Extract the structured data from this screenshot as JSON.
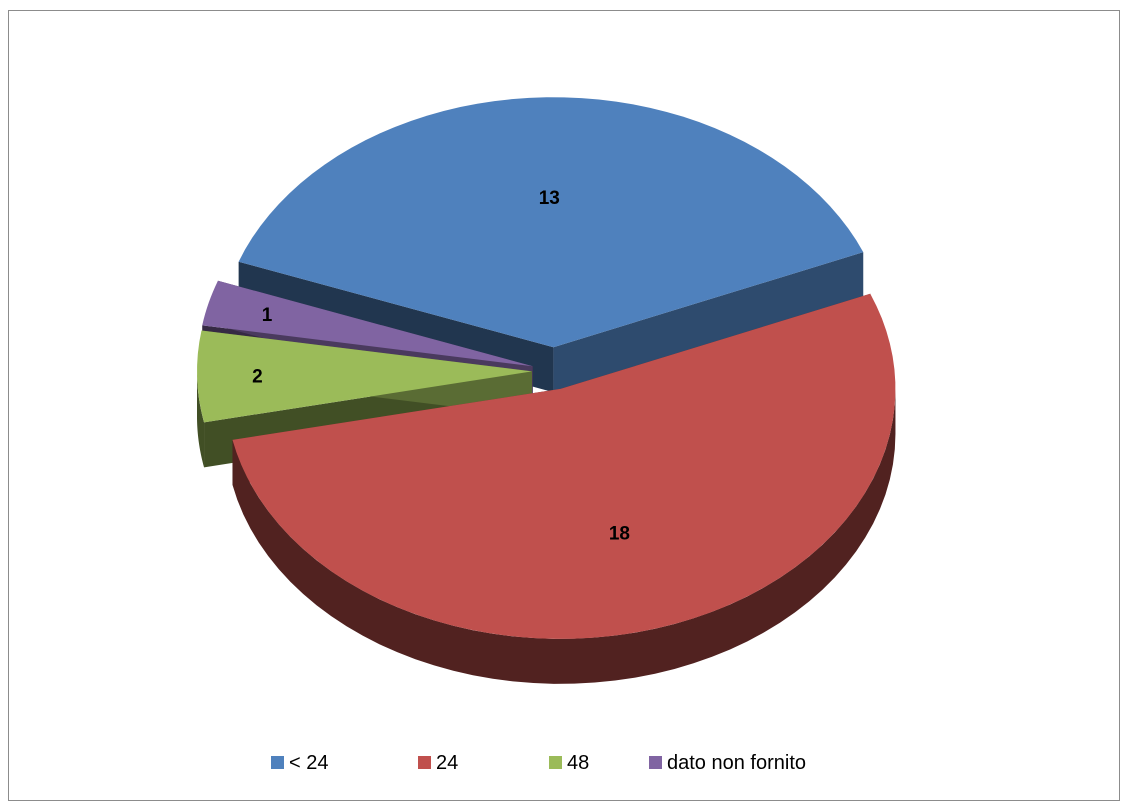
{
  "chart_data": {
    "type": "pie",
    "style": "3d-exploded",
    "title": "",
    "slices": [
      {
        "label": "< 24",
        "value": 13,
        "color": "#4F81BD"
      },
      {
        "label": "24",
        "value": 18,
        "color": "#C0504D"
      },
      {
        "label": "48",
        "value": 2,
        "color": "#9BBB59"
      },
      {
        "label": "dato non fornito",
        "value": 1,
        "color": "#8064A2"
      }
    ],
    "legend_position": "bottom"
  }
}
